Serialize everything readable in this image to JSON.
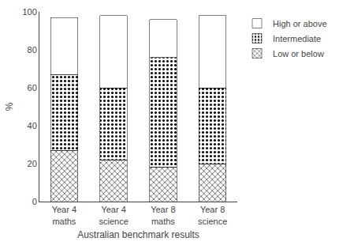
{
  "chart_data": {
    "type": "bar",
    "stacked": true,
    "categories": [
      "Year 4\nmaths",
      "Year 4\nscience",
      "Year 8\nmaths",
      "Year 8\nscience"
    ],
    "series": [
      {
        "name": "Low or below",
        "color": "#ffffff",
        "values": [
          27,
          22,
          18,
          20
        ]
      },
      {
        "name": "Intermediate",
        "color": "#ffffff",
        "values": [
          40,
          38,
          58,
          40
        ]
      },
      {
        "name": "High or above",
        "color": "#222222",
        "values": [
          30,
          38,
          20,
          38
        ]
      }
    ],
    "xlabel": "Australian benchmark results",
    "ylabel": "%",
    "ylim": [
      0,
      100
    ],
    "yticks": [
      0,
      20,
      40,
      60,
      80,
      100
    ],
    "grid": false,
    "legend": "upper right"
  }
}
